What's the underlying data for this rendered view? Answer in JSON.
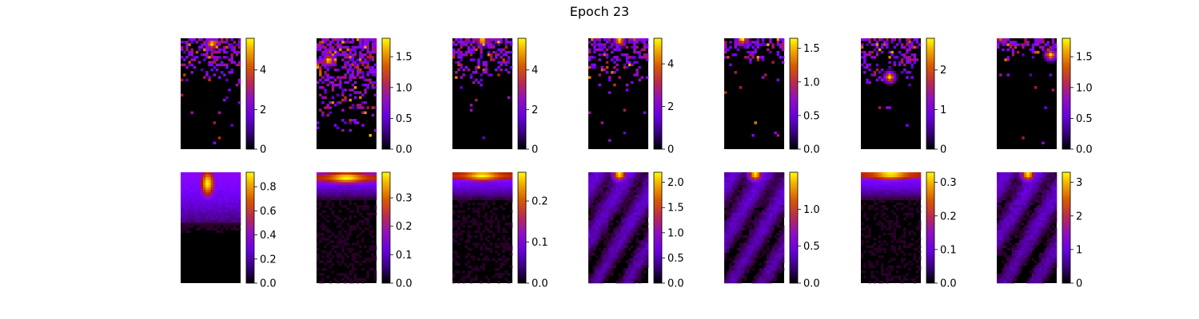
{
  "title": "Epoch 23",
  "chart_data": [
    {
      "type": "heatmap",
      "title": "Epoch 23",
      "colormap": "gnuplot",
      "grid": false,
      "axes_visible": false,
      "panels": [
        {
          "row": 1,
          "col": 1,
          "vmin": 0,
          "vmax": 5.6,
          "colorbar_ticks": [
            0,
            2,
            4
          ],
          "tick_labels": [
            "0",
            "2",
            "4"
          ],
          "hotspot": [
            0.52,
            0.05
          ],
          "pattern": "sparse"
        },
        {
          "row": 1,
          "col": 2,
          "vmin": 0,
          "vmax": 1.8,
          "colorbar_ticks": [
            0,
            0.5,
            1.0,
            1.5
          ],
          "tick_labels": [
            "0.0",
            "0.5",
            "1.0",
            "1.5"
          ],
          "hotspot": [
            0.2,
            0.2
          ],
          "pattern": "sparse_dense"
        },
        {
          "row": 1,
          "col": 3,
          "vmin": 0,
          "vmax": 5.6,
          "colorbar_ticks": [
            0,
            2,
            4
          ],
          "tick_labels": [
            "0",
            "2",
            "4"
          ],
          "hotspot": [
            0.5,
            0.02
          ],
          "pattern": "sparse"
        },
        {
          "row": 1,
          "col": 4,
          "vmin": 0,
          "vmax": 5.2,
          "colorbar_ticks": [
            0,
            2,
            4
          ],
          "tick_labels": [
            "0",
            "2",
            "4"
          ],
          "hotspot": [
            0.52,
            0.02
          ],
          "pattern": "sparse"
        },
        {
          "row": 1,
          "col": 5,
          "vmin": 0,
          "vmax": 1.65,
          "colorbar_ticks": [
            0,
            0.5,
            1.0,
            1.5
          ],
          "tick_labels": [
            "0.0",
            "0.5",
            "1.0",
            "1.5"
          ],
          "hotspot": [
            0.3,
            0.01
          ],
          "pattern": "sparse_top"
        },
        {
          "row": 1,
          "col": 6,
          "vmin": 0,
          "vmax": 2.8,
          "colorbar_ticks": [
            0,
            1,
            2
          ],
          "tick_labels": [
            "0",
            "1",
            "2"
          ],
          "hotspot": [
            0.48,
            0.35
          ],
          "pattern": "sparse"
        },
        {
          "row": 1,
          "col": 7,
          "vmin": 0,
          "vmax": 1.8,
          "colorbar_ticks": [
            0,
            0.5,
            1.0,
            1.5
          ],
          "tick_labels": [
            "0.0",
            "0.5",
            "1.0",
            "1.5"
          ],
          "hotspot": [
            0.9,
            0.15
          ],
          "pattern": "sparse_top"
        },
        {
          "row": 2,
          "col": 1,
          "vmin": 0,
          "vmax": 0.92,
          "colorbar_ticks": [
            0,
            0.2,
            0.4,
            0.6,
            0.8
          ],
          "tick_labels": [
            "0.0",
            "0.2",
            "0.4",
            "0.6",
            "0.8"
          ],
          "hotspot": [
            0.45,
            0.1
          ],
          "pattern": "smooth_big"
        },
        {
          "row": 2,
          "col": 2,
          "vmin": 0,
          "vmax": 0.39,
          "colorbar_ticks": [
            0,
            0.1,
            0.2,
            0.3
          ],
          "tick_labels": [
            "0.0",
            "0.1",
            "0.2",
            "0.3"
          ],
          "hotspot": [
            0.5,
            0.05
          ],
          "pattern": "smooth_band"
        },
        {
          "row": 2,
          "col": 3,
          "vmin": 0,
          "vmax": 0.27,
          "colorbar_ticks": [
            0,
            0.1,
            0.2
          ],
          "tick_labels": [
            "0.0",
            "0.1",
            "0.2"
          ],
          "hotspot": [
            0.5,
            0.03
          ],
          "pattern": "smooth_band"
        },
        {
          "row": 2,
          "col": 4,
          "vmin": 0,
          "vmax": 2.2,
          "colorbar_ticks": [
            0,
            0.5,
            1.0,
            1.5,
            2.0
          ],
          "tick_labels": [
            "0.0",
            "0.5",
            "1.0",
            "1.5",
            "2.0"
          ],
          "hotspot": [
            0.52,
            0.02
          ],
          "pattern": "smooth_point"
        },
        {
          "row": 2,
          "col": 5,
          "vmin": 0,
          "vmax": 1.5,
          "colorbar_ticks": [
            0,
            0.5,
            1.0
          ],
          "tick_labels": [
            "0.0",
            "0.5",
            "1.0"
          ],
          "hotspot": [
            0.52,
            0.02
          ],
          "pattern": "smooth_point"
        },
        {
          "row": 2,
          "col": 6,
          "vmin": 0,
          "vmax": 0.33,
          "colorbar_ticks": [
            0,
            0.1,
            0.2,
            0.3
          ],
          "tick_labels": [
            "0.0",
            "0.1",
            "0.2",
            "0.3"
          ],
          "hotspot": [
            0.5,
            0.02
          ],
          "pattern": "smooth_band"
        },
        {
          "row": 2,
          "col": 7,
          "vmin": 0,
          "vmax": 3.3,
          "colorbar_ticks": [
            0,
            1,
            2,
            3
          ],
          "tick_labels": [
            "0",
            "1",
            "2",
            "3"
          ],
          "hotspot": [
            0.52,
            0.02
          ],
          "pattern": "smooth_point"
        }
      ]
    }
  ]
}
